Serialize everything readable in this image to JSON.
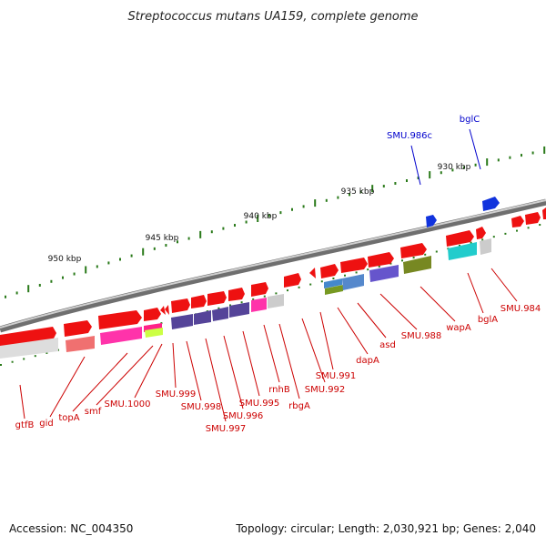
{
  "title": "Streptococcus mutans UA159, complete genome",
  "footer": {
    "accession": "Accession: NC_004350",
    "topology": "Topology: circular; Length: 2,030,921 bp; Genes: 2,040"
  },
  "colors": {
    "forward": "#ee1111",
    "reverse": "#f07070",
    "highlight_forward": "#1133dd",
    "label": "#cc0000",
    "label_highlight": "#0000cc",
    "tick": "#2a7a1a",
    "backbone": "#888888"
  },
  "scale_labels": [
    "930 kbp",
    "935 kbp",
    "940 kbp",
    "945 kbp",
    "950 kbp"
  ],
  "gene_labels": [
    {
      "name": "gtfB",
      "hl": false
    },
    {
      "name": "gid",
      "hl": false
    },
    {
      "name": "topA",
      "hl": false
    },
    {
      "name": "smf",
      "hl": false
    },
    {
      "name": "SMU.1000",
      "hl": false
    },
    {
      "name": "SMU.999",
      "hl": false
    },
    {
      "name": "SMU.998",
      "hl": false
    },
    {
      "name": "SMU.997",
      "hl": false
    },
    {
      "name": "SMU.996",
      "hl": false
    },
    {
      "name": "SMU.995",
      "hl": false
    },
    {
      "name": "rnhB",
      "hl": false
    },
    {
      "name": "rbgA",
      "hl": false
    },
    {
      "name": "SMU.992",
      "hl": false
    },
    {
      "name": "SMU.991",
      "hl": false
    },
    {
      "name": "dapA",
      "hl": false
    },
    {
      "name": "asd",
      "hl": false
    },
    {
      "name": "SMU.988",
      "hl": false
    },
    {
      "name": "wapA",
      "hl": false
    },
    {
      "name": "bglA",
      "hl": false
    },
    {
      "name": "SMU.984",
      "hl": false
    },
    {
      "name": "SMU.986c",
      "hl": true
    },
    {
      "name": "bglC",
      "hl": true
    }
  ]
}
